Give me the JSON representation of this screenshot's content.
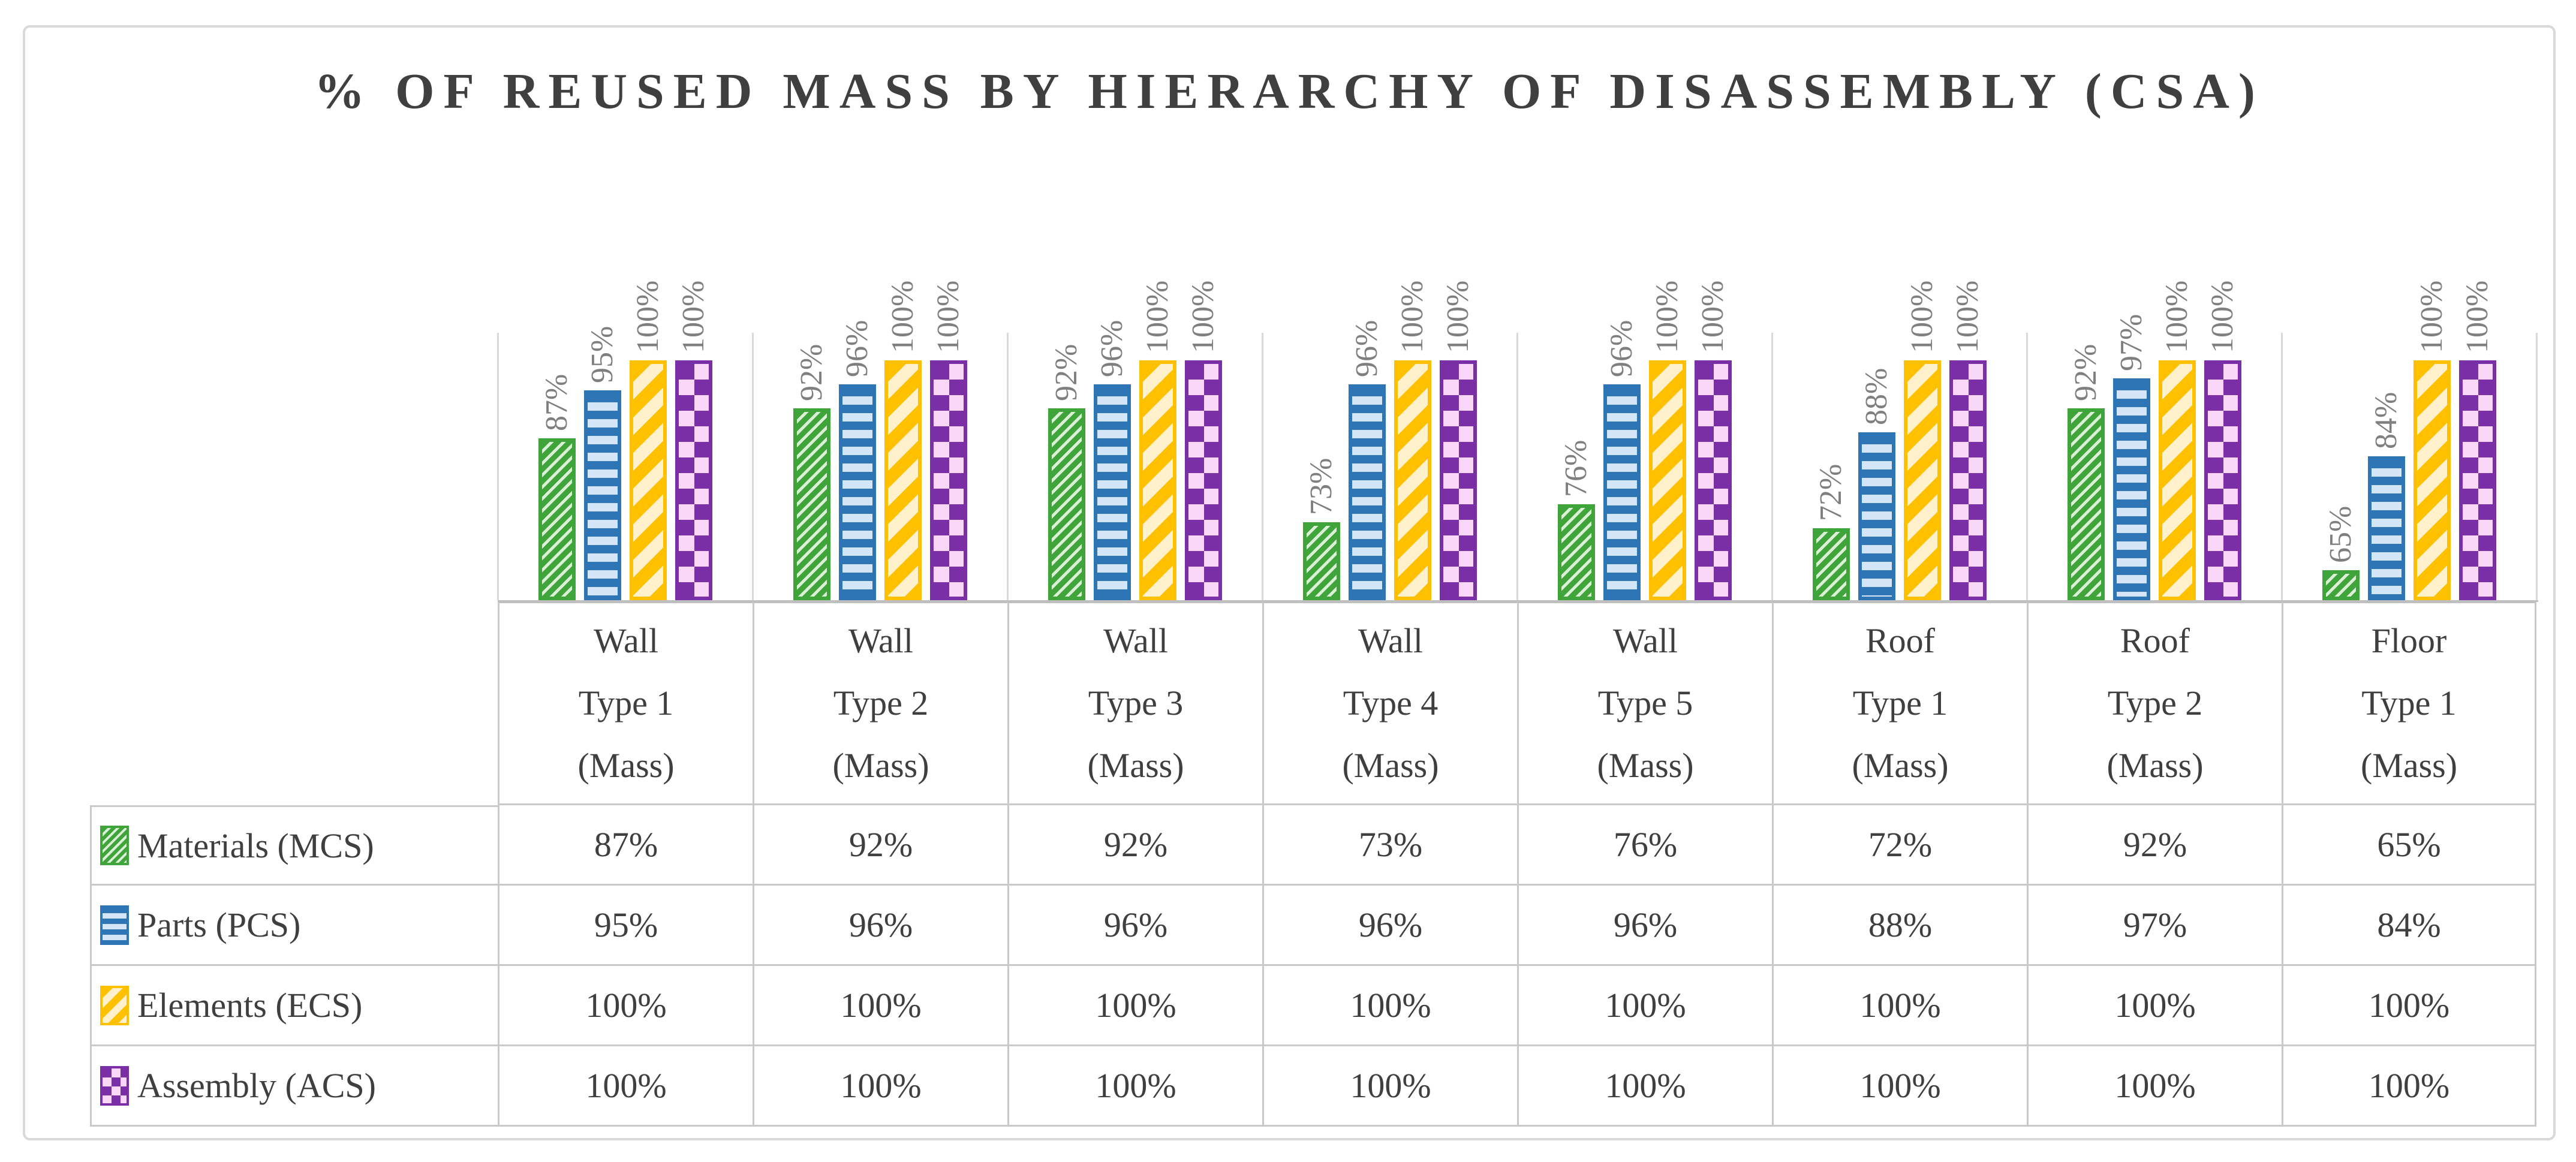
{
  "title": "% OF REUSED MASS BY HIERARCHY OF DISASSEMBLY (CSA)",
  "chart_data": {
    "type": "bar",
    "title": "% OF REUSED MASS BY HIERARCHY OF DISASSEMBLY (CSA)",
    "categories": [
      "Wall Type 1 (Mass)",
      "Wall Type 2 (Mass)",
      "Wall Type 3 (Mass)",
      "Wall Type 4 (Mass)",
      "Wall Type 5 (Mass)",
      "Roof Type 1 (Mass)",
      "Roof Type 2 (Mass)",
      "Floor Type 1 (Mass)"
    ],
    "category_lines": [
      [
        "Wall",
        "Type 1",
        "(Mass)"
      ],
      [
        "Wall",
        "Type 2",
        "(Mass)"
      ],
      [
        "Wall",
        "Type 3",
        "(Mass)"
      ],
      [
        "Wall",
        "Type 4",
        "(Mass)"
      ],
      [
        "Wall",
        "Type 5",
        "(Mass)"
      ],
      [
        "Roof",
        "Type 1",
        "(Mass)"
      ],
      [
        "Roof",
        "Type 2",
        "(Mass)"
      ],
      [
        "Floor",
        "Type 1",
        "(Mass)"
      ]
    ],
    "series": [
      {
        "name": "Materials (MCS)",
        "values": [
          87,
          92,
          92,
          73,
          76,
          72,
          92,
          65
        ],
        "color": "#3FA53B",
        "light": "#DCF0D8",
        "pattern": "diagonal-thin"
      },
      {
        "name": "Parts (PCS)",
        "values": [
          95,
          96,
          96,
          96,
          96,
          88,
          97,
          84
        ],
        "color": "#2E75B6",
        "light": "#D3E5F7",
        "pattern": "horizontal"
      },
      {
        "name": "Elements (ECS)",
        "values": [
          100,
          100,
          100,
          100,
          100,
          100,
          100,
          100
        ],
        "color": "#FFC000",
        "light": "#FFF1CC",
        "pattern": "diagonal-wide"
      },
      {
        "name": "Assembly (ACS)",
        "values": [
          100,
          100,
          100,
          100,
          100,
          100,
          100,
          100
        ],
        "color": "#7B2FA6",
        "light": "#FAD6F8",
        "pattern": "checker"
      }
    ],
    "value_suffix": "%",
    "axis": {
      "min": 60,
      "max": 100,
      "gridlines": false,
      "tick_labels_visible": false
    },
    "data_labels": {
      "visible": true,
      "rotation": -90,
      "color": "#7F7F7F"
    },
    "legend_position": "data-table-left",
    "colors": {
      "title_text": "#3F3F3F",
      "table_text": "#3F3F3F",
      "label_text": "#7F7F7F",
      "axis_line": "#BFBFBF",
      "grid_line": "#C9C9C9",
      "separator_line": "#D9D9D9",
      "figure_border": "#D9D9D9"
    }
  }
}
